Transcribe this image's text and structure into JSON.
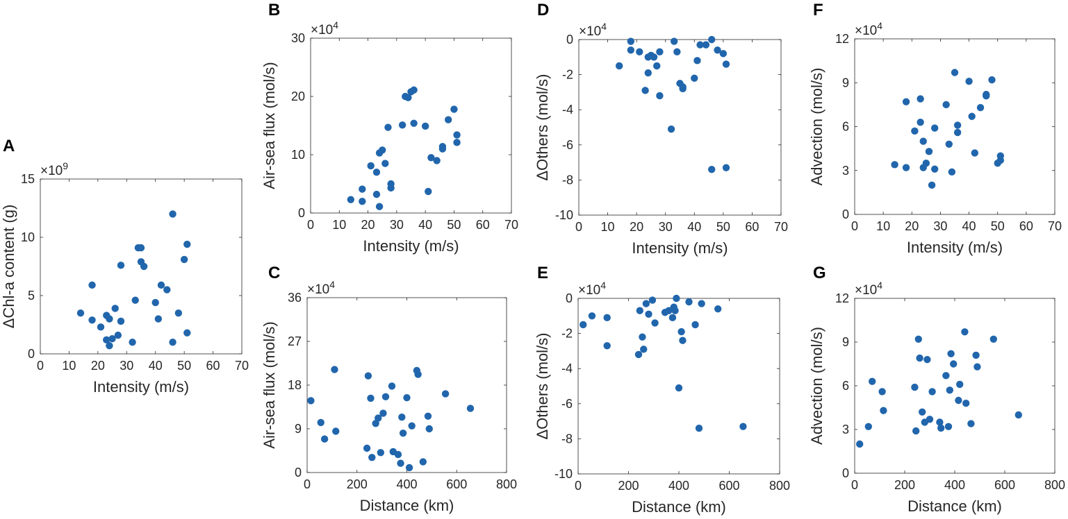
{
  "figure": {
    "marker_color": "#2166ac",
    "axis_color": "#262626"
  },
  "chart_data": [
    {
      "id": "A",
      "type": "scatter",
      "panel_label": "A",
      "xlabel": "Intensity (m/s)",
      "ylabel": "ΔChl-a content (g)",
      "exponent_base": "×10",
      "exponent_power": "9",
      "xlim": [
        0,
        70
      ],
      "ylim": [
        0,
        15
      ],
      "xticks": [
        0,
        10,
        20,
        30,
        40,
        50,
        60,
        70
      ],
      "yticks": [
        0,
        5,
        10,
        15
      ],
      "x": [
        14,
        18,
        18,
        21,
        23,
        23,
        24,
        24,
        25,
        26,
        27,
        28,
        28,
        32,
        33,
        34,
        35,
        35,
        36,
        40,
        41,
        42,
        44,
        46,
        46,
        48,
        50,
        51,
        51
      ],
      "y": [
        3.5,
        2.9,
        5.9,
        2.3,
        3.3,
        1.2,
        3.0,
        0.7,
        1.3,
        3.9,
        1.6,
        2.8,
        7.6,
        1.0,
        4.6,
        9.1,
        9.1,
        7.9,
        7.5,
        4.4,
        3.0,
        5.9,
        5.5,
        12.0,
        1.0,
        3.5,
        8.1,
        9.4,
        1.8
      ]
    },
    {
      "id": "B",
      "type": "scatter",
      "panel_label": "B",
      "xlabel": "Intensity (m/s)",
      "ylabel": "Air-sea flux (mol/s)",
      "exponent_base": "×10",
      "exponent_power": "4",
      "xlim": [
        0,
        70
      ],
      "ylim": [
        0,
        30
      ],
      "xticks": [
        0,
        10,
        20,
        30,
        40,
        50,
        60,
        70
      ],
      "yticks": [
        0,
        10,
        20,
        30
      ],
      "x": [
        14,
        18,
        18,
        21,
        23,
        23,
        24,
        24,
        25,
        26,
        27,
        28,
        28,
        32,
        33,
        34,
        35,
        36,
        36,
        40,
        41,
        42,
        44,
        46,
        46,
        48,
        50,
        51,
        51
      ],
      "y": [
        2.3,
        4.1,
        2.0,
        8.1,
        7.0,
        3.2,
        1.1,
        10.3,
        10.8,
        8.5,
        14.7,
        5.0,
        4.3,
        15.1,
        20.0,
        19.8,
        20.8,
        21.1,
        15.4,
        14.9,
        3.7,
        9.5,
        9.0,
        11.0,
        11.4,
        16.0,
        17.8,
        13.4,
        12.1
      ]
    },
    {
      "id": "C",
      "type": "scatter",
      "panel_label": "C",
      "xlabel": "Distance (km)",
      "ylabel": "Air-sea flux (mol/s)",
      "exponent_base": "×10",
      "exponent_power": "4",
      "xlim": [
        0,
        800
      ],
      "ylim": [
        0,
        36
      ],
      "xticks": [
        0,
        200,
        400,
        600,
        800
      ],
      "yticks": [
        0,
        9,
        18,
        27,
        36
      ],
      "x": [
        15,
        55,
        70,
        110,
        115,
        240,
        245,
        255,
        260,
        275,
        285,
        295,
        305,
        315,
        340,
        345,
        365,
        375,
        380,
        385,
        400,
        410,
        420,
        440,
        445,
        465,
        485,
        490,
        555,
        655
      ],
      "y": [
        14.8,
        10.3,
        6.9,
        21.2,
        8.5,
        5.0,
        19.9,
        15.3,
        3.1,
        10.1,
        11.2,
        4.1,
        12.2,
        15.6,
        17.8,
        4.3,
        3.7,
        1.9,
        11.4,
        8.1,
        15.4,
        1.0,
        9.6,
        21.0,
        20.2,
        2.2,
        11.6,
        9.0,
        16.2,
        13.2
      ]
    },
    {
      "id": "D",
      "type": "scatter",
      "panel_label": "D",
      "xlabel": "Intensity (m/s)",
      "ylabel": "ΔOthers (mol/s)",
      "exponent_base": "×10",
      "exponent_power": "4",
      "xlim": [
        0,
        70
      ],
      "ylim": [
        -10,
        0
      ],
      "xticks": [
        0,
        10,
        20,
        30,
        40,
        50,
        60,
        70
      ],
      "yticks": [
        -10,
        -8,
        -6,
        -4,
        -2,
        0
      ],
      "x": [
        14,
        18,
        18,
        21,
        23,
        24,
        24,
        25,
        26,
        27,
        28,
        28,
        32,
        33,
        34,
        35,
        36,
        36,
        40,
        41,
        42,
        44,
        46,
        46,
        48,
        50,
        51,
        51
      ],
      "y": [
        -1.5,
        -0.1,
        -0.6,
        -0.7,
        -2.9,
        -1.0,
        -1.9,
        -0.9,
        -1.0,
        -1.5,
        -3.2,
        -0.7,
        -5.1,
        -0.1,
        -0.7,
        -2.5,
        -2.7,
        -2.8,
        -2.2,
        -1.2,
        -0.3,
        -0.3,
        0.0,
        -7.4,
        -0.6,
        -0.8,
        -1.4,
        -7.3
      ]
    },
    {
      "id": "E",
      "type": "scatter",
      "panel_label": "E",
      "xlabel": "Distance (km)",
      "ylabel": "ΔOthers (mol/s)",
      "exponent_base": "×10",
      "exponent_power": "4",
      "xlim": [
        0,
        800
      ],
      "ylim": [
        -10,
        0
      ],
      "xticks": [
        0,
        200,
        400,
        600,
        800
      ],
      "yticks": [
        -10,
        -8,
        -6,
        -4,
        -2,
        0
      ],
      "x": [
        20,
        55,
        115,
        115,
        240,
        245,
        255,
        260,
        270,
        280,
        295,
        305,
        345,
        360,
        375,
        380,
        385,
        390,
        400,
        410,
        415,
        440,
        465,
        480,
        490,
        555,
        655
      ],
      "y": [
        -1.5,
        -1.0,
        -2.7,
        -1.1,
        -3.2,
        -0.7,
        -2.2,
        -2.9,
        -0.3,
        -0.9,
        -0.1,
        -1.4,
        -0.8,
        -0.7,
        -1.1,
        -0.5,
        -0.7,
        0.0,
        -5.1,
        -1.9,
        -2.4,
        -0.2,
        -1.5,
        -7.4,
        -0.3,
        -0.6,
        -7.3
      ]
    },
    {
      "id": "F",
      "type": "scatter",
      "panel_label": "F",
      "xlabel": "Intensity (m/s)",
      "ylabel": "Advection (mol/s)",
      "exponent_base": "×10",
      "exponent_power": "4",
      "xlim": [
        0,
        70
      ],
      "ylim": [
        0,
        12
      ],
      "xticks": [
        0,
        10,
        20,
        30,
        40,
        50,
        60,
        70
      ],
      "yticks": [
        0,
        3,
        6,
        9,
        12
      ],
      "x": [
        14,
        18,
        18,
        21,
        23,
        23,
        24,
        24,
        25,
        26,
        27,
        28,
        28,
        32,
        33,
        34,
        35,
        36,
        36,
        40,
        41,
        42,
        44,
        46,
        46,
        48,
        50,
        51,
        51
      ],
      "y": [
        3.4,
        3.2,
        7.7,
        5.7,
        7.9,
        6.3,
        5.0,
        3.2,
        3.5,
        4.3,
        2.0,
        5.9,
        3.1,
        7.5,
        4.8,
        2.9,
        9.7,
        6.1,
        5.6,
        9.1,
        6.7,
        4.2,
        7.3,
        8.1,
        8.2,
        9.2,
        3.5,
        4.0,
        3.7
      ]
    },
    {
      "id": "G",
      "type": "scatter",
      "panel_label": "G",
      "xlabel": "Distance (km)",
      "ylabel": "Advection (mol/s)",
      "exponent_base": "×10",
      "exponent_power": "4",
      "xlim": [
        0,
        800
      ],
      "ylim": [
        0,
        12
      ],
      "xticks": [
        0,
        200,
        400,
        600,
        800
      ],
      "yticks": [
        0,
        3,
        6,
        9,
        12
      ],
      "x": [
        20,
        55,
        70,
        110,
        115,
        240,
        245,
        255,
        260,
        270,
        280,
        290,
        300,
        310,
        340,
        345,
        365,
        375,
        380,
        385,
        395,
        415,
        420,
        440,
        445,
        465,
        485,
        490,
        555,
        655
      ],
      "y": [
        2.0,
        3.2,
        6.3,
        5.6,
        4.3,
        5.9,
        2.9,
        9.2,
        7.9,
        4.2,
        3.5,
        7.8,
        3.7,
        5.6,
        3.5,
        3.1,
        6.7,
        3.2,
        5.7,
        8.2,
        7.5,
        5.0,
        6.1,
        9.7,
        4.8,
        3.4,
        8.1,
        7.3,
        9.2,
        4.0
      ]
    }
  ]
}
